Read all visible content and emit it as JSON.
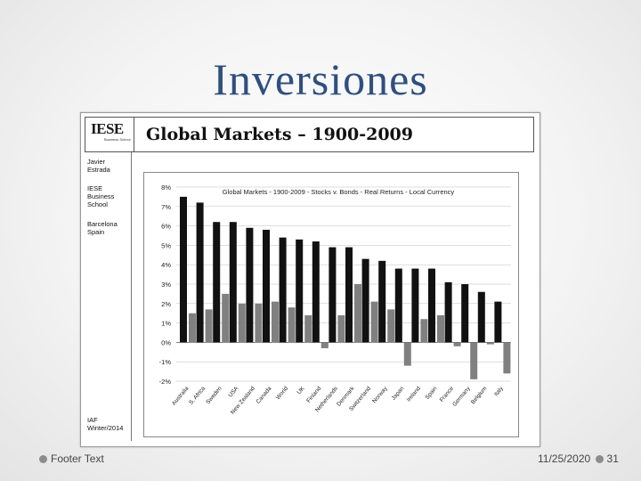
{
  "slide": {
    "title": "Inversiones",
    "footer_text": "Footer Text",
    "date": "11/25/2020",
    "page": "31"
  },
  "panel": {
    "logo_text": "IESE",
    "logo_sub": "Business School",
    "title": "Global Markets – 1900-2009",
    "side_lines": [
      "Javier",
      "Estrada",
      "IESE",
      "Business",
      "School",
      "Barcelona",
      "Spain"
    ],
    "side_bottom": [
      "IAF",
      "Winter/2014"
    ]
  },
  "colors": {
    "stocks": "#111111",
    "bonds": "#808080",
    "title": "#2f4f7f"
  },
  "chart_data": {
    "type": "bar",
    "title": "Global Markets - 1900-2009 - Stocks v. Bonds - Real Returns - Local Currency",
    "categories": [
      "Australia",
      "S. Africa",
      "Sweden",
      "USA",
      "New Zealand",
      "Canada",
      "World",
      "UK",
      "Finland",
      "Netherlands",
      "Denmark",
      "Switzerland",
      "Norway",
      "Japan",
      "Ireland",
      "Spain",
      "France",
      "Germany",
      "Belgium",
      "Italy"
    ],
    "series": [
      {
        "name": "Stocks",
        "values": [
          7.5,
          7.2,
          6.2,
          6.2,
          5.9,
          5.8,
          5.4,
          5.3,
          5.2,
          4.9,
          4.9,
          4.3,
          4.2,
          3.8,
          3.8,
          3.8,
          3.1,
          3.0,
          2.6,
          2.1
        ]
      },
      {
        "name": "Bonds",
        "values": [
          1.5,
          1.7,
          2.5,
          2.0,
          2.0,
          2.1,
          1.8,
          1.4,
          -0.3,
          1.4,
          3.0,
          2.1,
          1.7,
          -1.2,
          1.2,
          1.4,
          -0.2,
          -1.9,
          -0.1,
          -1.6
        ]
      }
    ],
    "y_ticks": [
      "8%",
      "7%",
      "6%",
      "5%",
      "4%",
      "3%",
      "2%",
      "1%",
      "0%",
      "-1%",
      "-2%"
    ],
    "ylim": [
      -2,
      8
    ],
    "grid": true
  }
}
